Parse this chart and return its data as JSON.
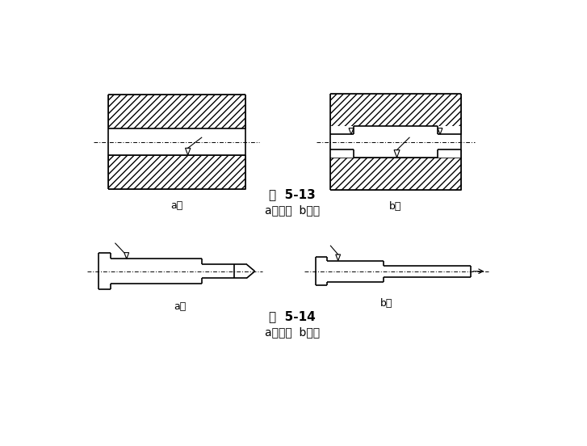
{
  "fig_width": 7.27,
  "fig_height": 5.52,
  "bg_color": "#ffffff",
  "line_color": "#000000",
  "caption1": "图  5-13",
  "caption1b": "a）不好  b）好",
  "caption2": "图  5-14",
  "caption2b": "a）不好  b）好",
  "label_a1": "a）",
  "label_b1": "b）",
  "label_a2": "a）",
  "label_b2": "b）"
}
